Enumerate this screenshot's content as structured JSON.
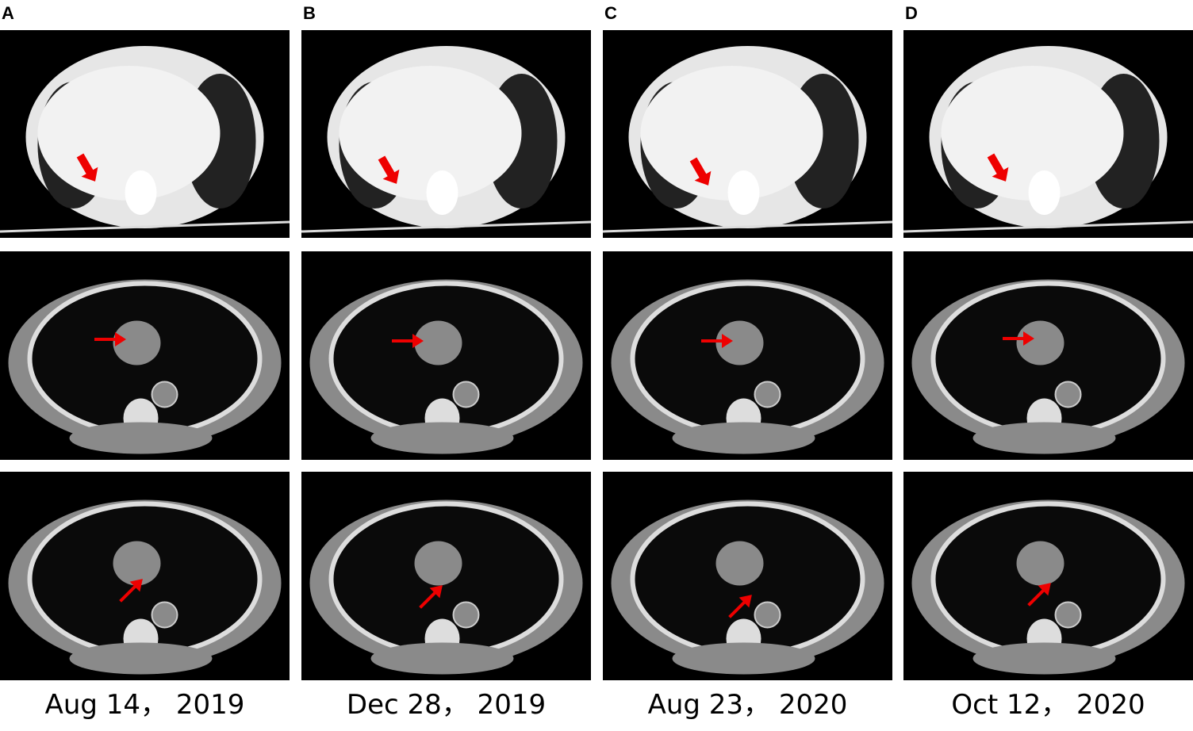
{
  "panels": [
    {
      "label": "A",
      "date": "Aug 14， 2019"
    },
    {
      "label": "B",
      "date": "Dec 28， 2019"
    },
    {
      "label": "C",
      "date": "Aug 23， 2020"
    },
    {
      "label": "D",
      "date": "Oct 12， 2020"
    }
  ]
}
